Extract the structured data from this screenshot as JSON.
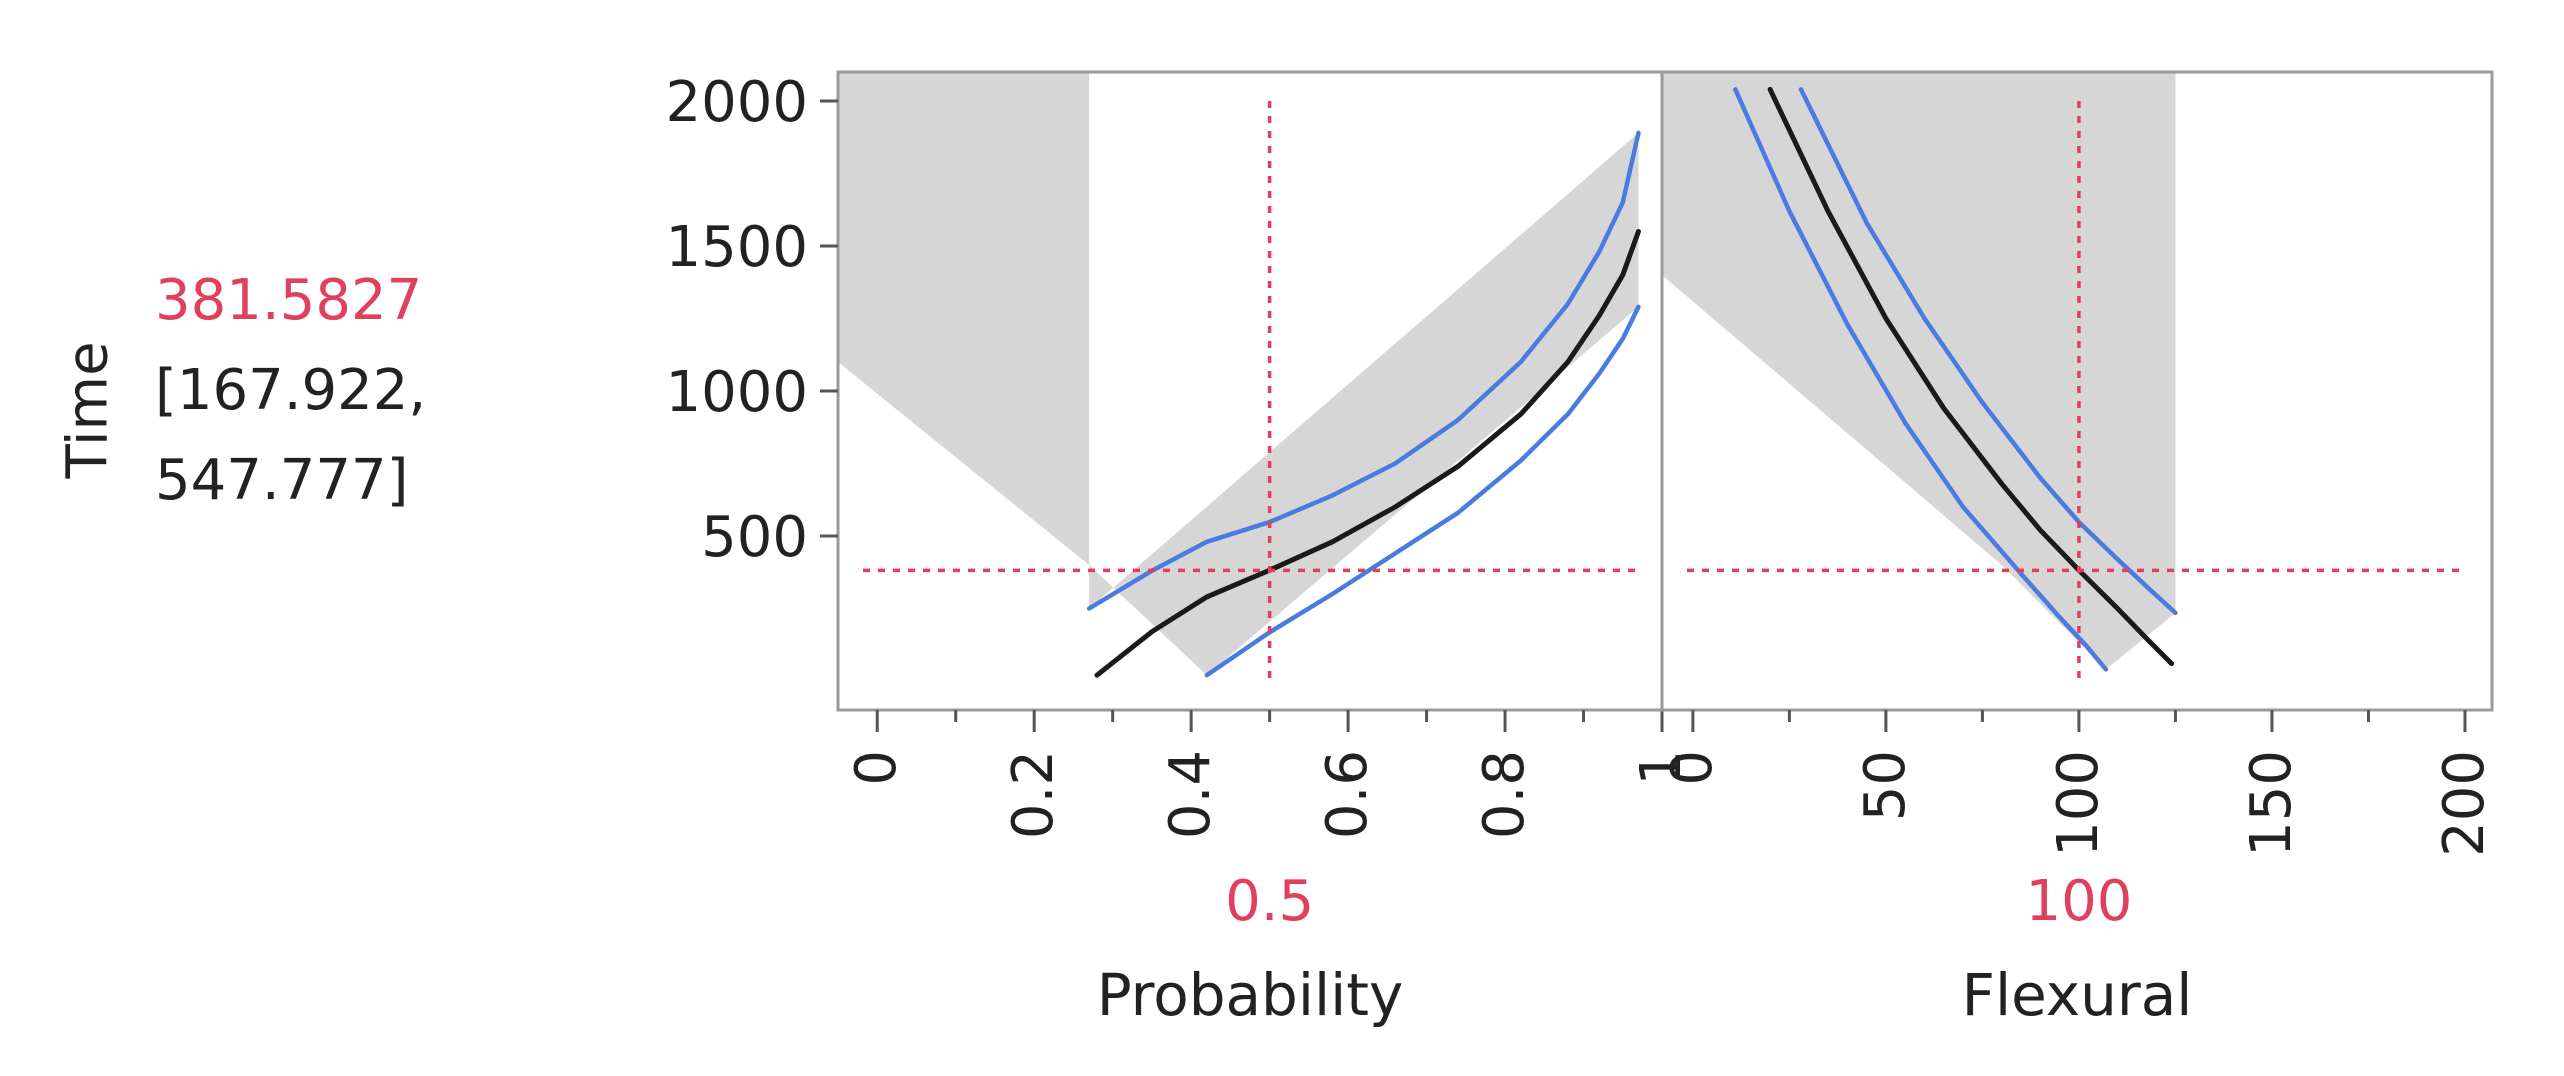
{
  "response": {
    "name": "Time",
    "value": "381.5827",
    "ci_line1": "[167.922,",
    "ci_line2": "547.777]"
  },
  "colors": {
    "current": "#e0405e",
    "curve": "#1a1a1a",
    "band": "#4a7be0",
    "region": "#d6d6d6",
    "frame": "#9a9a9a"
  },
  "chart_data": [
    {
      "type": "line",
      "factor": "Probability",
      "xlabel": "Probability",
      "ylabel": "Time",
      "current_x": 0.5,
      "current_x_label": "0.5",
      "current_y": 381.5827,
      "xlim": [
        -0.05,
        1.0
      ],
      "ylim": [
        -100,
        2100
      ],
      "x_ticks": [
        0,
        0.2,
        0.4,
        0.6,
        0.8,
        1
      ],
      "x_tick_labels": [
        "0",
        "0.2",
        "0.4",
        "0.6",
        "0.8",
        "1"
      ],
      "y_ticks": [
        500,
        1000,
        1500,
        2000
      ],
      "y_tick_labels": [
        "500",
        "1000",
        "1500",
        "2000"
      ],
      "series": [
        {
          "role": "prediction",
          "x": [
            0.28,
            0.35,
            0.42,
            0.5,
            0.58,
            0.66,
            0.74,
            0.82,
            0.88,
            0.92,
            0.95,
            0.97
          ],
          "y": [
            20,
            170,
            290,
            382,
            480,
            600,
            740,
            920,
            1100,
            1260,
            1400,
            1550
          ]
        },
        {
          "role": "upper",
          "x": [
            0.27,
            0.35,
            0.42,
            0.5,
            0.58,
            0.66,
            0.74,
            0.82,
            0.88,
            0.92,
            0.95,
            0.97
          ],
          "y": [
            250,
            380,
            480,
            548,
            640,
            750,
            900,
            1100,
            1300,
            1480,
            1650,
            1890
          ]
        },
        {
          "role": "lower",
          "x": [
            0.42,
            0.5,
            0.58,
            0.66,
            0.74,
            0.82,
            0.88,
            0.92,
            0.95,
            0.97
          ],
          "y": [
            20,
            168,
            300,
            440,
            580,
            760,
            920,
            1060,
            1180,
            1290
          ]
        }
      ],
      "shaded_regions": [
        {
          "x": [
            -0.05,
            0.27,
            0.27,
            -0.05
          ],
          "y": [
            2100,
            2100,
            400,
            1100
          ]
        },
        {
          "x": [
            0.27,
            0.42,
            0.97,
            0.97,
            0.27
          ],
          "y": [
            400,
            20,
            1290,
            1890,
            250
          ]
        }
      ]
    },
    {
      "type": "line",
      "factor": "Flexural",
      "xlabel": "Flexural",
      "ylabel": "Time",
      "current_x": 100,
      "current_x_label": "100",
      "current_y": 381.5827,
      "xlim": [
        -8,
        207
      ],
      "ylim": [
        -100,
        2100
      ],
      "x_ticks": [
        0,
        50,
        100,
        150,
        200
      ],
      "x_tick_labels": [
        "0",
        "50",
        "100",
        "150",
        "200"
      ],
      "y_ticks": [
        500,
        1000,
        1500,
        2000
      ],
      "y_tick_labels": [
        "500",
        "1000",
        "1500",
        "2000"
      ],
      "series": [
        {
          "role": "prediction",
          "x": [
            20,
            35,
            50,
            65,
            80,
            90,
            100,
            110,
            118,
            124
          ],
          "y": [
            2040,
            1620,
            1250,
            940,
            680,
            520,
            382,
            250,
            140,
            60
          ]
        },
        {
          "role": "upper",
          "x": [
            28,
            45,
            60,
            75,
            90,
            100,
            110,
            118,
            125
          ],
          "y": [
            2040,
            1580,
            1250,
            960,
            700,
            548,
            420,
            320,
            235
          ]
        },
        {
          "role": "lower",
          "x": [
            11,
            25,
            40,
            55,
            70,
            85,
            95,
            102,
            107
          ],
          "y": [
            2040,
            1620,
            1230,
            890,
            600,
            370,
            220,
            120,
            40
          ]
        }
      ],
      "shaded_regions": [
        {
          "x": [
            -8,
            0,
            125,
            125,
            107,
            80,
            -8
          ],
          "y": [
            2100,
            2100,
            2100,
            235,
            40,
            400,
            1400
          ]
        }
      ]
    }
  ]
}
